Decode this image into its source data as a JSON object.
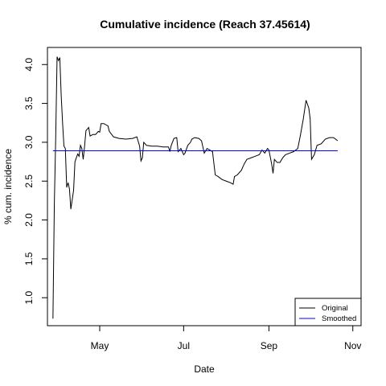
{
  "chart_data": {
    "type": "line",
    "title": "Cumulative incidence (Reach 37.45614)",
    "xlabel": "Date",
    "ylabel": "% cum. incidence",
    "x_ticks": [
      "2020-05-01",
      "2020-07-01",
      "2020-09-01",
      "2020-11-01"
    ],
    "x_tick_labels": [
      "May",
      "Jul",
      "Sep",
      "Nov"
    ],
    "y_ticks": [
      1.0,
      1.5,
      2.0,
      2.5,
      3.0,
      3.5,
      4.0
    ],
    "y_tick_labels": [
      "1.0",
      "1.5",
      "2.0",
      "2.5",
      "3.0",
      "3.5",
      "4.0"
    ],
    "xlim": [
      "2020-03-24",
      "2020-11-07"
    ],
    "ylim": [
      0.64,
      4.22
    ],
    "grid": false,
    "legend_position": "bottom-right",
    "colors": {
      "original": "#000000",
      "smoothed": "#0000ff"
    },
    "series": [
      {
        "name": "Original",
        "color": "#000000",
        "points": [
          [
            "2020-03-28",
            0.73
          ],
          [
            "2020-03-29",
            2.2
          ],
          [
            "2020-03-30",
            3.05
          ],
          [
            "2020-03-31",
            4.1
          ],
          [
            "2020-04-01",
            4.05
          ],
          [
            "2020-04-02",
            4.09
          ],
          [
            "2020-04-03",
            3.6
          ],
          [
            "2020-04-04",
            3.25
          ],
          [
            "2020-04-05",
            2.95
          ],
          [
            "2020-04-06",
            2.92
          ],
          [
            "2020-04-07",
            2.42
          ],
          [
            "2020-04-08",
            2.48
          ],
          [
            "2020-04-09",
            2.4
          ],
          [
            "2020-04-10",
            2.14
          ],
          [
            "2020-04-12",
            2.38
          ],
          [
            "2020-04-13",
            2.75
          ],
          [
            "2020-04-15",
            2.85
          ],
          [
            "2020-04-16",
            2.82
          ],
          [
            "2020-04-17",
            2.96
          ],
          [
            "2020-04-18",
            2.92
          ],
          [
            "2020-04-19",
            2.78
          ],
          [
            "2020-04-20",
            2.95
          ],
          [
            "2020-04-21",
            3.15
          ],
          [
            "2020-04-23",
            3.19
          ],
          [
            "2020-04-24",
            3.08
          ],
          [
            "2020-04-26",
            3.1
          ],
          [
            "2020-04-28",
            3.1
          ],
          [
            "2020-04-30",
            3.14
          ],
          [
            "2020-05-01",
            3.13
          ],
          [
            "2020-05-02",
            3.24
          ],
          [
            "2020-05-04",
            3.24
          ],
          [
            "2020-05-07",
            3.21
          ],
          [
            "2020-05-08",
            3.14
          ],
          [
            "2020-05-11",
            3.07
          ],
          [
            "2020-05-15",
            3.05
          ],
          [
            "2020-05-20",
            3.04
          ],
          [
            "2020-05-25",
            3.05
          ],
          [
            "2020-05-28",
            3.07
          ],
          [
            "2020-05-30",
            2.95
          ],
          [
            "2020-05-31",
            2.76
          ],
          [
            "2020-06-01",
            2.8
          ],
          [
            "2020-06-02",
            3.0
          ],
          [
            "2020-06-04",
            2.96
          ],
          [
            "2020-06-08",
            2.95
          ],
          [
            "2020-06-12",
            2.95
          ],
          [
            "2020-06-16",
            2.94
          ],
          [
            "2020-06-20",
            2.94
          ],
          [
            "2020-06-21",
            2.88
          ],
          [
            "2020-06-22",
            2.96
          ],
          [
            "2020-06-24",
            3.05
          ],
          [
            "2020-06-26",
            3.06
          ],
          [
            "2020-06-27",
            2.88
          ],
          [
            "2020-06-29",
            2.92
          ],
          [
            "2020-07-01",
            2.84
          ],
          [
            "2020-07-02",
            2.86
          ],
          [
            "2020-07-04",
            2.96
          ],
          [
            "2020-07-06",
            3.0
          ],
          [
            "2020-07-07",
            3.04
          ],
          [
            "2020-07-09",
            3.06
          ],
          [
            "2020-07-12",
            3.05
          ],
          [
            "2020-07-14",
            3.02
          ],
          [
            "2020-07-16",
            2.86
          ],
          [
            "2020-07-18",
            2.92
          ],
          [
            "2020-07-20",
            2.9
          ],
          [
            "2020-07-22",
            2.88
          ],
          [
            "2020-07-24",
            2.58
          ],
          [
            "2020-07-26",
            2.56
          ],
          [
            "2020-07-29",
            2.52
          ],
          [
            "2020-08-01",
            2.5
          ],
          [
            "2020-08-04",
            2.48
          ],
          [
            "2020-08-06",
            2.46
          ],
          [
            "2020-08-07",
            2.56
          ],
          [
            "2020-08-09",
            2.58
          ],
          [
            "2020-08-12",
            2.64
          ],
          [
            "2020-08-14",
            2.72
          ],
          [
            "2020-08-16",
            2.78
          ],
          [
            "2020-08-19",
            2.8
          ],
          [
            "2020-08-22",
            2.82
          ],
          [
            "2020-08-25",
            2.84
          ],
          [
            "2020-08-27",
            2.9
          ],
          [
            "2020-08-29",
            2.86
          ],
          [
            "2020-08-31",
            2.92
          ],
          [
            "2020-09-01",
            2.9
          ],
          [
            "2020-09-03",
            2.72
          ],
          [
            "2020-09-04",
            2.6
          ],
          [
            "2020-09-05",
            2.78
          ],
          [
            "2020-09-07",
            2.74
          ],
          [
            "2020-09-09",
            2.74
          ],
          [
            "2020-09-11",
            2.8
          ],
          [
            "2020-09-13",
            2.84
          ],
          [
            "2020-09-16",
            2.86
          ],
          [
            "2020-09-19",
            2.88
          ],
          [
            "2020-09-22",
            2.92
          ],
          [
            "2020-09-24",
            3.1
          ],
          [
            "2020-09-26",
            3.3
          ],
          [
            "2020-09-28",
            3.54
          ],
          [
            "2020-09-30",
            3.44
          ],
          [
            "2020-10-01",
            3.3
          ],
          [
            "2020-10-02",
            2.78
          ],
          [
            "2020-10-04",
            2.84
          ],
          [
            "2020-10-06",
            2.96
          ],
          [
            "2020-10-09",
            2.98
          ],
          [
            "2020-10-12",
            3.04
          ],
          [
            "2020-10-15",
            3.06
          ],
          [
            "2020-10-18",
            3.06
          ],
          [
            "2020-10-21",
            3.02
          ]
        ]
      },
      {
        "name": "Smoothed",
        "color": "#0000ff",
        "points": [
          [
            "2020-03-28",
            2.89
          ],
          [
            "2020-10-21",
            2.89
          ]
        ]
      }
    ]
  }
}
